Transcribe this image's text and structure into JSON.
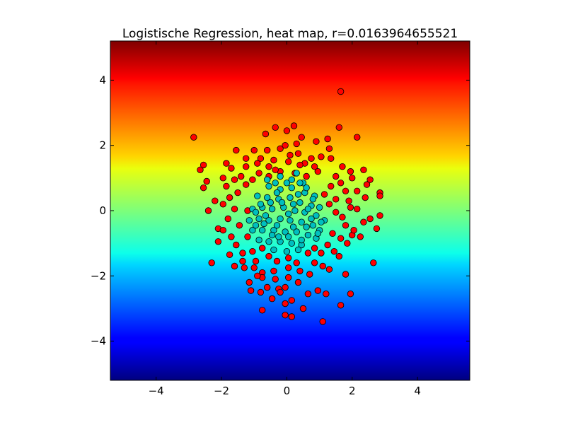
{
  "chart_data": {
    "type": "scatter",
    "title": "Logistische Regression, heat map, r=0.0163964655521",
    "xlabel": "",
    "ylabel": "",
    "xlim": [
      -5.4,
      5.6
    ],
    "ylim": [
      -5.2,
      5.2
    ],
    "x_ticks": [
      "−4",
      "−2",
      "0",
      "2",
      "4"
    ],
    "y_ticks": [
      "−4",
      "−2",
      "0",
      "2",
      "4"
    ],
    "x_tick_values": [
      -4,
      -2,
      0,
      2,
      4
    ],
    "y_tick_values": [
      -4,
      -2,
      0,
      2,
      4
    ],
    "heatmap": {
      "colormap": "jet",
      "direction": "vertical",
      "low_color": "#00007f",
      "high_color": "#7f0000"
    },
    "series": [
      {
        "color": "#ff0000",
        "points": [
          [
            -2.85,
            2.25
          ],
          [
            1.65,
            3.65
          ],
          [
            2.15,
            2.25
          ],
          [
            1.6,
            2.55
          ],
          [
            0.22,
            2.6
          ],
          [
            0.0,
            2.45
          ],
          [
            -0.65,
            2.35
          ],
          [
            -0.35,
            2.55
          ],
          [
            0.9,
            2.12
          ],
          [
            -1.55,
            1.85
          ],
          [
            -1.0,
            1.85
          ],
          [
            -0.8,
            1.6
          ],
          [
            -0.2,
            1.9
          ],
          [
            0.45,
            2.25
          ],
          [
            1.25,
            2.2
          ],
          [
            -2.55,
            1.4
          ],
          [
            -2.65,
            1.25
          ],
          [
            -2.45,
            0.9
          ],
          [
            -2.55,
            0.7
          ],
          [
            -1.85,
            1.45
          ],
          [
            -1.7,
            1.3
          ],
          [
            -1.25,
            1.35
          ],
          [
            -0.55,
            1.35
          ],
          [
            0.35,
            1.75
          ],
          [
            0.75,
            1.6
          ],
          [
            1.05,
            1.65
          ],
          [
            1.35,
            1.6
          ],
          [
            1.7,
            1.35
          ],
          [
            1.95,
            1.2
          ],
          [
            2.35,
            1.25
          ],
          [
            2.0,
            1.0
          ],
          [
            2.55,
            0.95
          ],
          [
            2.45,
            0.8
          ],
          [
            2.85,
            0.55
          ],
          [
            2.85,
            0.45
          ],
          [
            2.4,
            0.4
          ],
          [
            2.15,
            0.6
          ],
          [
            1.8,
            0.6
          ],
          [
            1.35,
            0.75
          ],
          [
            1.15,
            0.5
          ],
          [
            -2.4,
            0.0
          ],
          [
            -1.95,
            0.2
          ],
          [
            -1.75,
            0.4
          ],
          [
            -1.5,
            0.55
          ],
          [
            -1.25,
            0.8
          ],
          [
            -1.05,
            0.95
          ],
          [
            -0.85,
            1.15
          ],
          [
            -0.55,
            1.05
          ],
          [
            -0.2,
            1.2
          ],
          [
            0.25,
            1.15
          ],
          [
            0.6,
            1.05
          ],
          [
            0.95,
            1.2
          ],
          [
            -2.2,
            0.3
          ],
          [
            -1.6,
            0.05
          ],
          [
            -1.2,
            0.0
          ],
          [
            1.5,
            0.35
          ],
          [
            1.95,
            0.1
          ],
          [
            2.15,
            0.05
          ],
          [
            2.55,
            -0.25
          ],
          [
            2.85,
            -0.15
          ],
          [
            2.75,
            -0.55
          ],
          [
            2.35,
            -0.35
          ],
          [
            1.8,
            -0.45
          ],
          [
            1.4,
            -0.7
          ],
          [
            1.65,
            -0.85
          ],
          [
            2.0,
            -0.75
          ],
          [
            2.05,
            -0.6
          ],
          [
            -2.1,
            -0.55
          ],
          [
            -1.95,
            -0.6
          ],
          [
            -2.1,
            -0.95
          ],
          [
            -1.7,
            -0.8
          ],
          [
            -1.55,
            -1.05
          ],
          [
            -1.2,
            -0.8
          ],
          [
            -1.35,
            -1.3
          ],
          [
            -1.05,
            -1.25
          ],
          [
            -0.75,
            -1.15
          ],
          [
            -0.95,
            -1.55
          ],
          [
            -0.55,
            -1.4
          ],
          [
            -0.3,
            -1.55
          ],
          [
            0.05,
            -1.45
          ],
          [
            0.3,
            -1.6
          ],
          [
            0.65,
            -1.3
          ],
          [
            0.85,
            -1.15
          ],
          [
            1.05,
            -1.3
          ],
          [
            1.25,
            -1.05
          ],
          [
            1.45,
            -1.25
          ],
          [
            1.6,
            -1.4
          ],
          [
            1.85,
            -1.0
          ],
          [
            -2.3,
            -1.6
          ],
          [
            -1.6,
            -1.7
          ],
          [
            -1.3,
            -1.75
          ],
          [
            -1.0,
            -1.75
          ],
          [
            -0.75,
            -1.9
          ],
          [
            -0.4,
            -1.85
          ],
          [
            0.05,
            -1.75
          ],
          [
            0.4,
            -1.85
          ],
          [
            0.85,
            -1.6
          ],
          [
            1.1,
            -1.7
          ],
          [
            1.3,
            -1.8
          ],
          [
            1.8,
            -1.95
          ],
          [
            2.65,
            -1.6
          ],
          [
            -1.15,
            -2.2
          ],
          [
            -0.75,
            -2.05
          ],
          [
            -0.35,
            -2.1
          ],
          [
            0.05,
            -2.05
          ],
          [
            -0.05,
            -2.35
          ],
          [
            -1.1,
            -2.45
          ],
          [
            -0.6,
            -2.35
          ],
          [
            -0.25,
            -2.4
          ],
          [
            0.35,
            -2.2
          ],
          [
            0.95,
            -2.45
          ],
          [
            1.2,
            -2.55
          ],
          [
            1.95,
            -2.55
          ],
          [
            -0.45,
            -2.7
          ],
          [
            -0.05,
            -2.85
          ],
          [
            0.15,
            -2.75
          ],
          [
            0.65,
            -2.55
          ],
          [
            -0.75,
            -3.05
          ],
          [
            -0.05,
            -3.2
          ],
          [
            0.15,
            -3.25
          ],
          [
            0.5,
            -3.0
          ],
          [
            1.65,
            -2.9
          ],
          [
            1.1,
            -3.4
          ],
          [
            -0.2,
            -2.5
          ],
          [
            -0.8,
            -2.5
          ],
          [
            -0.9,
            1.45
          ],
          [
            -0.4,
            1.55
          ],
          [
            0.05,
            1.5
          ],
          [
            0.55,
            1.45
          ],
          [
            0.85,
            1.35
          ],
          [
            -1.4,
            1.05
          ],
          [
            -1.6,
            0.95
          ],
          [
            -1.85,
            0.75
          ],
          [
            1.65,
            0.85
          ],
          [
            1.9,
            0.3
          ],
          [
            -1.8,
            -0.25
          ],
          [
            -1.45,
            -0.45
          ],
          [
            -1.75,
            -1.35
          ],
          [
            -1.35,
            -1.55
          ],
          [
            1.5,
            -0.05
          ],
          [
            1.3,
            0.2
          ],
          [
            1.7,
            -0.2
          ],
          [
            2.25,
            -0.8
          ],
          [
            -0.9,
            -2.0
          ],
          [
            0.7,
            -1.95
          ],
          [
            0.3,
            2.05
          ],
          [
            -0.05,
            2.0
          ],
          [
            -1.25,
            1.6
          ],
          [
            1.3,
            1.9
          ],
          [
            -0.6,
            1.85
          ],
          [
            0.1,
            1.7
          ],
          [
            -0.35,
            1.25
          ],
          [
            0.4,
            1.4
          ],
          [
            1.5,
            1.05
          ],
          [
            -1.95,
            1.0
          ]
        ]
      },
      {
        "color": "#00bfbf",
        "points": [
          [
            -0.2,
            1.05
          ],
          [
            0.15,
            0.95
          ],
          [
            0.5,
            0.85
          ],
          [
            -0.55,
            0.75
          ],
          [
            -0.2,
            0.65
          ],
          [
            0.15,
            0.7
          ],
          [
            0.55,
            0.55
          ],
          [
            0.85,
            0.45
          ],
          [
            -0.9,
            0.45
          ],
          [
            -0.6,
            0.4
          ],
          [
            -0.25,
            0.35
          ],
          [
            0.1,
            0.4
          ],
          [
            0.4,
            0.25
          ],
          [
            0.75,
            0.15
          ],
          [
            1.0,
            0.1
          ],
          [
            -1.05,
            0.05
          ],
          [
            -0.75,
            0.1
          ],
          [
            -0.45,
            0.05
          ],
          [
            -0.1,
            0.1
          ],
          [
            0.25,
            0.0
          ],
          [
            0.55,
            -0.05
          ],
          [
            0.9,
            -0.15
          ],
          [
            1.15,
            -0.3
          ],
          [
            -1.15,
            -0.3
          ],
          [
            -0.85,
            -0.25
          ],
          [
            -0.55,
            -0.3
          ],
          [
            -0.2,
            -0.25
          ],
          [
            0.1,
            -0.3
          ],
          [
            0.45,
            -0.35
          ],
          [
            0.8,
            -0.45
          ],
          [
            1.0,
            -0.6
          ],
          [
            -1.05,
            -0.6
          ],
          [
            -0.75,
            -0.6
          ],
          [
            -0.4,
            -0.6
          ],
          [
            -0.05,
            -0.65
          ],
          [
            0.3,
            -0.65
          ],
          [
            0.65,
            -0.75
          ],
          [
            0.9,
            -0.85
          ],
          [
            -0.85,
            -0.9
          ],
          [
            -0.55,
            -0.95
          ],
          [
            -0.2,
            -0.95
          ],
          [
            0.15,
            -1.0
          ],
          [
            0.45,
            -1.05
          ],
          [
            -0.4,
            -1.2
          ],
          [
            0.0,
            -1.25
          ],
          [
            0.35,
            -1.2
          ],
          [
            -0.6,
            0.95
          ],
          [
            0.3,
            1.15
          ],
          [
            -0.95,
            -0.05
          ],
          [
            1.05,
            -0.35
          ],
          [
            0.6,
            0.7
          ],
          [
            -0.35,
            0.85
          ],
          [
            0.0,
            0.85
          ],
          [
            0.35,
            0.5
          ],
          [
            -0.7,
            -0.4
          ],
          [
            -0.3,
            -0.45
          ],
          [
            0.2,
            -0.5
          ],
          [
            0.6,
            -0.5
          ],
          [
            -0.15,
            0.25
          ],
          [
            0.05,
            -0.1
          ],
          [
            -0.5,
            0.25
          ],
          [
            0.75,
            -0.25
          ],
          [
            -0.95,
            -0.45
          ],
          [
            0.45,
            -0.9
          ],
          [
            -0.25,
            -0.8
          ],
          [
            0.8,
            0.35
          ],
          [
            -0.8,
            0.2
          ],
          [
            0.2,
            0.2
          ],
          [
            -0.45,
            -0.75
          ],
          [
            0.05,
            -0.8
          ],
          [
            0.65,
            0.05
          ],
          [
            -0.3,
            0.55
          ],
          [
            0.4,
            0.85
          ],
          [
            -0.65,
            -0.15
          ],
          [
            0.95,
            -0.7
          ]
        ]
      }
    ]
  }
}
